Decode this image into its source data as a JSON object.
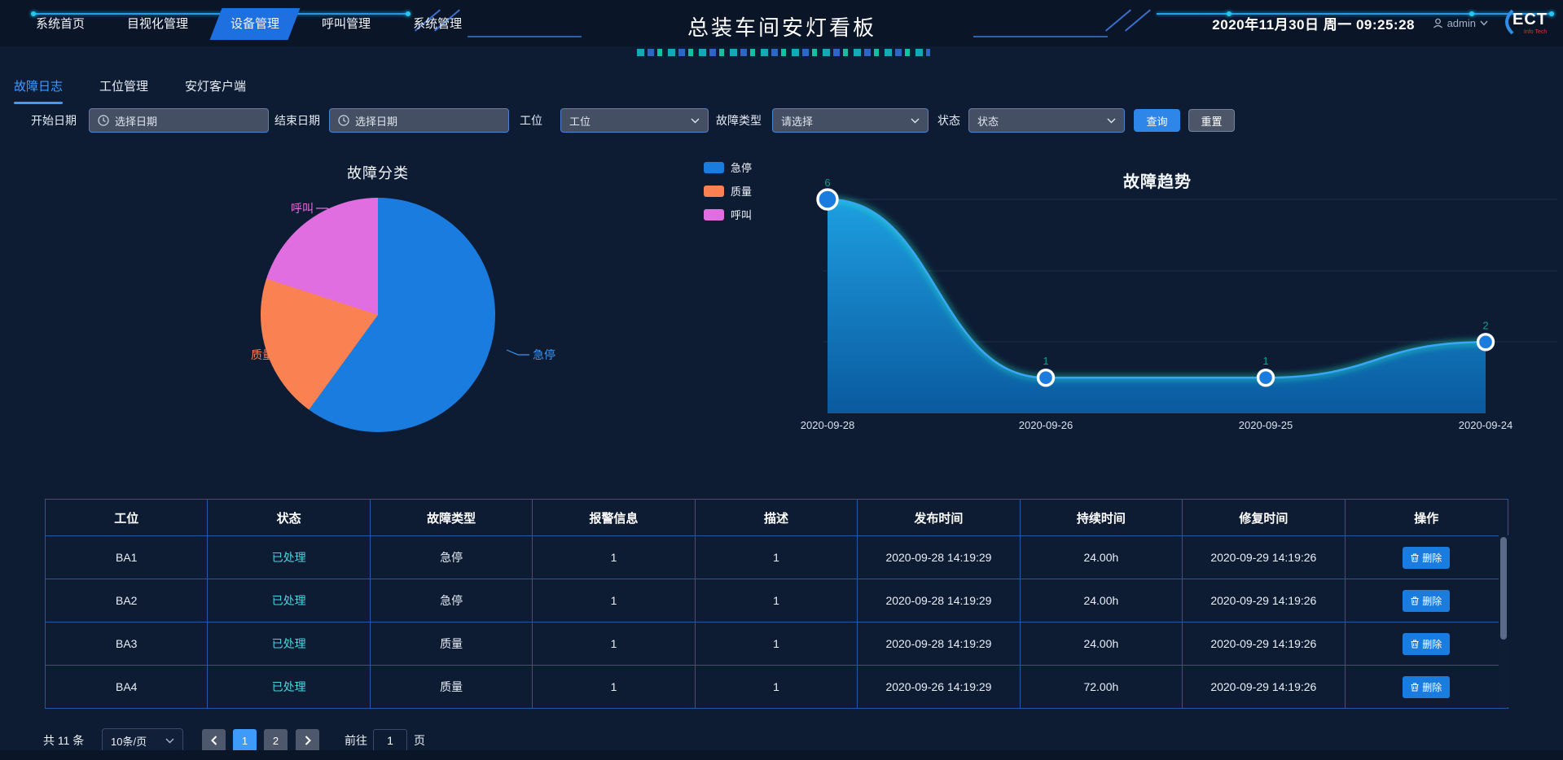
{
  "header": {
    "nav": [
      "系统首页",
      "目视化管理",
      "设备管理",
      "呼叫管理",
      "系统管理"
    ],
    "active_nav": "设备管理",
    "title": "总装车间安灯看板",
    "datetime": "2020年11月30日 周一 09:25:28",
    "user": "admin",
    "logo": "ECT",
    "logo_sub": "Info Tech"
  },
  "tabs": [
    "故障日志",
    "工位管理",
    "安灯客户端"
  ],
  "active_tab": "故障日志",
  "filters": {
    "start_date_label": "开始日期",
    "start_date_placeholder": "选择日期",
    "end_date_label": "结束日期",
    "end_date_placeholder": "选择日期",
    "station_label": "工位",
    "station_value": "工位",
    "fault_type_label": "故障类型",
    "fault_type_value": "请选择",
    "status_label": "状态",
    "status_value": "状态",
    "search_button": "查询",
    "reset_button": "重置"
  },
  "chart_data": [
    {
      "type": "pie",
      "title": "故障分类",
      "labels": [
        "急停",
        "质量",
        "呼叫"
      ],
      "values": [
        6,
        2,
        2
      ],
      "colors": [
        "#1b7ce0",
        "#fa8152",
        "#e06ee0"
      ],
      "label_colors": [
        "#3f94ea",
        "#fa8152",
        "#e06ee0"
      ],
      "legend_position": "right-top"
    },
    {
      "type": "area",
      "title": "故障趋势",
      "x": [
        "2020-09-28",
        "2020-09-26",
        "2020-09-25",
        "2020-09-24"
      ],
      "values": [
        6,
        1,
        1,
        2
      ],
      "ylim": [
        0,
        6
      ],
      "grid": true,
      "label_color": "#12a08b",
      "point_color": "#1b7ce0",
      "line_color": "#3aa6f8"
    }
  ],
  "table": {
    "columns": [
      "工位",
      "状态",
      "故障类型",
      "报警信息",
      "描述",
      "发布时间",
      "持续时间",
      "修复时间",
      "操作"
    ],
    "delete_label": "删除",
    "rows": [
      [
        "BA1",
        "已处理",
        "急停",
        "1",
        "1",
        "2020-09-28 14:19:29",
        "24.00h",
        "2020-09-29 14:19:26"
      ],
      [
        "BA2",
        "已处理",
        "急停",
        "1",
        "1",
        "2020-09-28 14:19:29",
        "24.00h",
        "2020-09-29 14:19:26"
      ],
      [
        "BA3",
        "已处理",
        "质量",
        "1",
        "1",
        "2020-09-28 14:19:29",
        "24.00h",
        "2020-09-29 14:19:26"
      ],
      [
        "BA4",
        "已处理",
        "质量",
        "1",
        "1",
        "2020-09-26 14:19:29",
        "72.00h",
        "2020-09-29 14:19:26"
      ]
    ]
  },
  "pagination": {
    "total": "共 11 条",
    "page_size": "10条/页",
    "pages": [
      "1",
      "2"
    ],
    "active_page": "1",
    "goto_label": "前往",
    "goto_value": "1",
    "goto_suffix": "页"
  }
}
